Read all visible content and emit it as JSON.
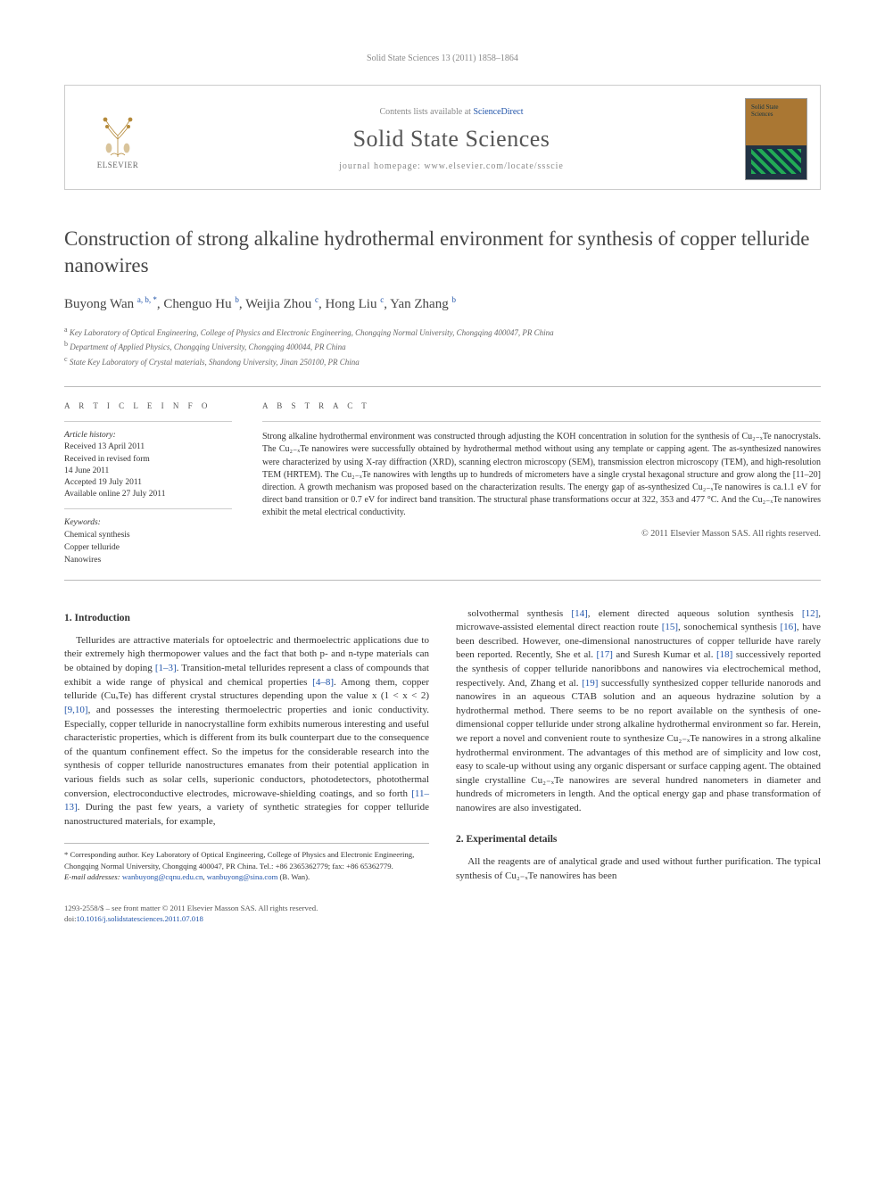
{
  "running_head": "Solid State Sciences 13 (2011) 1858–1864",
  "masthead": {
    "elsevier_label": "ELSEVIER",
    "contents_prefix": "Contents lists available at ",
    "contents_link": "ScienceDirect",
    "journal_name": "Solid State Sciences",
    "homepage_prefix": "journal homepage: ",
    "homepage_url": "www.elsevier.com/locate/ssscie",
    "cover_title": "Solid State Sciences"
  },
  "title": "Construction of strong alkaline hydrothermal environment for synthesis of copper telluride nanowires",
  "authors_html": "Buyong Wan <sup>a, b, *</sup>, Chenguo Hu <sup>b</sup>, Weijia Zhou <sup>c</sup>, Hong Liu <sup>c</sup>, Yan Zhang <sup>b</sup>",
  "affiliations": [
    {
      "sup": "a",
      "text": "Key Laboratory of Optical Engineering, College of Physics and Electronic Engineering, Chongqing Normal University, Chongqing 400047, PR China"
    },
    {
      "sup": "b",
      "text": "Department of Applied Physics, Chongqing University, Chongqing 400044, PR China"
    },
    {
      "sup": "c",
      "text": "State Key Laboratory of Crystal materials, Shandong University, Jinan 250100, PR China"
    }
  ],
  "article_info": {
    "header": "A R T I C L E   I N F O",
    "history_label": "Article history:",
    "history": [
      "Received 13 April 2011",
      "Received in revised form",
      "14 June 2011",
      "Accepted 19 July 2011",
      "Available online 27 July 2011"
    ],
    "keywords_label": "Keywords:",
    "keywords": [
      "Chemical synthesis",
      "Copper telluride",
      "Nanowires"
    ]
  },
  "abstract": {
    "header": "A B S T R A C T",
    "text": "Strong alkaline hydrothermal environment was constructed through adjusting the KOH concentration in solution for the synthesis of Cu₂₋ₓTe nanocrystals. The Cu₂₋ₓTe nanowires were successfully obtained by hydrothermal method without using any template or capping agent. The as-synthesized nanowires were characterized by using X-ray diffraction (XRD), scanning electron microscopy (SEM), transmission electron microscopy (TEM), and high-resolution TEM (HRTEM). The Cu₂₋ₓTe nanowires with lengths up to hundreds of micrometers have a single crystal hexagonal structure and grow along the [11–20] direction. A growth mechanism was proposed based on the characterization results. The energy gap of as-synthesized Cu₂₋ₓTe nanowires is ca.1.1 eV for direct band transition or 0.7 eV for indirect band transition. The structural phase transformations occur at 322, 353 and 477 °C. And the Cu₂₋ₓTe nanowires exhibit the metal electrical conductivity.",
    "copyright": "© 2011 Elsevier Masson SAS. All rights reserved."
  },
  "body": {
    "sec1_head": "1. Introduction",
    "sec1_p1": "Tellurides are attractive materials for optoelectric and thermoelectric applications due to their extremely high thermopower values and the fact that both p- and n-type materials can be obtained by doping [1–3]. Transition-metal tellurides represent a class of compounds that exhibit a wide range of physical and chemical properties [4–8]. Among them, copper telluride (CuₓTe) has different crystal structures depending upon the value x (1 < x < 2) [9,10], and possesses the interesting thermoelectric properties and ionic conductivity. Especially, copper telluride in nanocrystalline form exhibits numerous interesting and useful characteristic properties, which is different from its bulk counterpart due to the consequence of the quantum confinement effect. So the impetus for the considerable research into the synthesis of copper telluride nanostructures emanates from their potential application in various fields such as solar cells, superionic conductors, photodetectors, photothermal conversion, electroconductive electrodes, microwave-shielding coatings, and so forth [11–13]. During the past few years, a variety of synthetic strategies for copper telluride nanostructured materials, for example, ",
    "sec1_p1_cont": "solvothermal synthesis [14], element directed aqueous solution synthesis [12], microwave-assisted elemental direct reaction route [15], sonochemical synthesis [16], have been described. However, one-dimensional nanostructures of copper telluride have rarely been reported. Recently, She et al. [17] and Suresh Kumar et al. [18] successively reported the synthesis of copper telluride nanoribbons and nanowires via electrochemical method, respectively. And, Zhang et al. [19] successfully synthesized copper telluride nanorods and nanowires in an aqueous CTAB solution and an aqueous hydrazine solution by a hydrothermal method. There seems to be no report available on the synthesis of one-dimensional copper telluride under strong alkaline hydrothermal environment so far. Herein, we report a novel and convenient route to synthesize Cu₂₋ₓTe nanowires in a strong alkaline hydrothermal environment. The advantages of this method are of simplicity and low cost, easy to scale-up without using any organic dispersant or surface capping agent. The obtained single crystalline Cu₂₋ₓTe nanowires are several hundred nanometers in diameter and hundreds of micrometers in length. And the optical energy gap and phase transformation of nanowires are also investigated.",
    "sec2_head": "2. Experimental details",
    "sec2_p1": "All the reagents are of analytical grade and used without further purification. The typical synthesis of Cu₂₋ₓTe nanowires has been"
  },
  "footnote": {
    "corr": "* Corresponding author. Key Laboratory of Optical Engineering, College of Physics and Electronic Engineering, Chongqing Normal University, Chongqing 400047, PR China. Tel.: +86 2365362779; fax: +86 65362779.",
    "email_label": "E-mail addresses: ",
    "email1": "wanbuyong@cqnu.edu.cn",
    "email_sep": ", ",
    "email2": "wanbuyong@sina.com",
    "email_tail": " (B. Wan)."
  },
  "footer": {
    "line1": "1293-2558/$ – see front matter © 2011 Elsevier Masson SAS. All rights reserved.",
    "doi_label": "doi:",
    "doi": "10.1016/j.solidstatesciences.2011.07.018"
  },
  "colors": {
    "link": "#2255aa",
    "rule": "#bbbbbb",
    "muted": "#888888",
    "text": "#333333"
  }
}
